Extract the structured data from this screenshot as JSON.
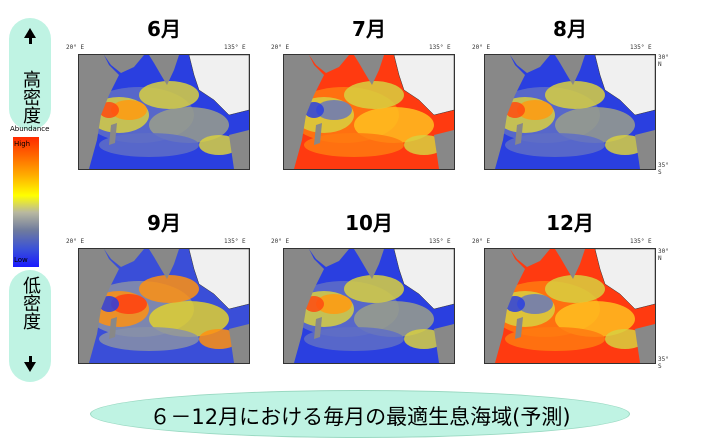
{
  "legend": {
    "high_density": "高密度",
    "low_density": "低密度",
    "scale_title": "Abundance",
    "scale_high": "High",
    "scale_low": "Low"
  },
  "axis_labels": {
    "west_lon": "20° E",
    "east_lon": "135° E",
    "north_lat": "30° N",
    "south_lat": "35° S"
  },
  "panels": [
    {
      "month": "6月",
      "dominant": "blue",
      "hotspots": "west-central"
    },
    {
      "month": "7月",
      "dominant": "red",
      "hotspots": "north"
    },
    {
      "month": "8月",
      "dominant": "blue",
      "hotspots": "west-central"
    },
    {
      "month": "9月",
      "dominant": "mixed",
      "hotspots": "north-west"
    },
    {
      "month": "10月",
      "dominant": "blue",
      "hotspots": "central"
    },
    {
      "month": "12月",
      "dominant": "red",
      "hotspots": "north-west"
    }
  ],
  "footer": {
    "title": "６－12月における毎月の最適生息海域(予測)"
  },
  "colors": {
    "pill_bg": "#bff3e3",
    "land": "#888888",
    "high": "#ff2a00",
    "low": "#1a1aff"
  }
}
